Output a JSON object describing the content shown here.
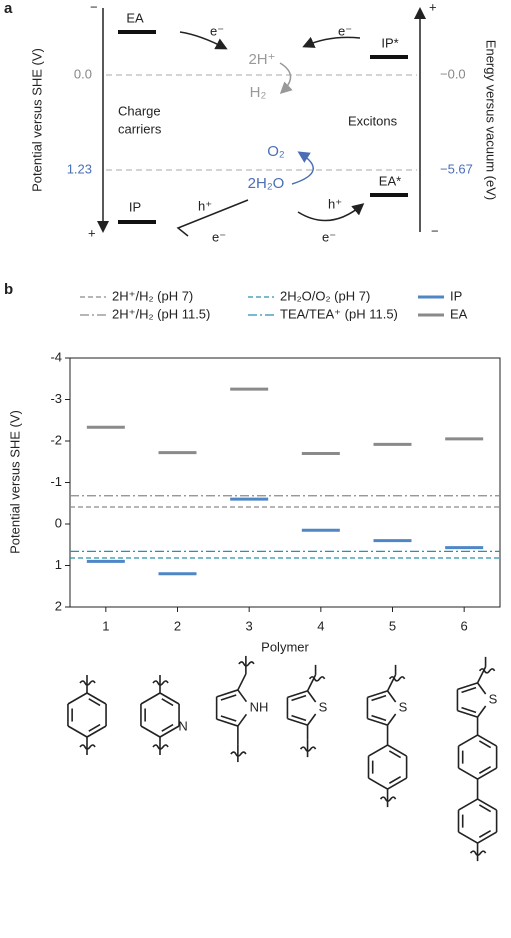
{
  "panel_a": {
    "label": "a",
    "left_axis_label": "Potential versus SHE (V)",
    "right_axis_label": "Energy versus vacuum (eV)",
    "left_top_sign": "−",
    "left_bottom_sign": "+",
    "right_top_sign": "+",
    "right_bottom_sign": "−",
    "left_levels": [
      "0.0",
      "1.23"
    ],
    "right_levels": [
      "−0.0",
      "−5.67"
    ],
    "ea": "EA",
    "ip": "IP",
    "ip_star": "IP*",
    "ea_star": "EA*",
    "charge_carriers": [
      "Charge",
      "carriers"
    ],
    "excitons": "Excitons",
    "proton": "2H⁺",
    "hydrogen": "H₂",
    "oxygen": "O₂",
    "water": "2H₂O",
    "electron_labels": [
      "e⁻",
      "e⁻",
      "e⁻",
      "e⁻"
    ],
    "hole_labels": [
      "h⁺",
      "h⁺"
    ]
  },
  "chart_data": {
    "type": "levels",
    "panel_label": "b",
    "ylabel": "Potential versus SHE (V)",
    "xlabel": "Polymer",
    "categories": [
      "1",
      "2",
      "3",
      "4",
      "5",
      "6"
    ],
    "ylim": [
      2,
      -4
    ],
    "yticks": [
      -4,
      -3,
      -2,
      -1,
      0,
      1,
      2
    ],
    "reference_lines": [
      {
        "name": "2H⁺/H₂ (pH 7)",
        "color": "#8a8a8a",
        "style": "dashed",
        "value": -0.41
      },
      {
        "name": "2H⁺/H₂ (pH 11.5)",
        "color": "#8a8a8a",
        "style": "dashdot",
        "value": -0.68
      },
      {
        "name": "2H₂O/O₂ (pH 7)",
        "color": "#2a8fb0",
        "style": "dashed",
        "value": 0.82
      },
      {
        "name": "TEA/TEA⁺ (pH 11.5)",
        "color": "#2a8fb0",
        "style": "dashdot",
        "value": 0.66
      }
    ],
    "series": [
      {
        "name": "IP",
        "color": "#4f86c6",
        "values": [
          0.9,
          1.2,
          -0.6,
          0.15,
          0.4,
          0.57
        ]
      },
      {
        "name": "EA",
        "color": "#8a8a8a",
        "values": [
          -2.33,
          -1.72,
          -3.25,
          -1.7,
          -1.92,
          -2.05
        ]
      }
    ]
  },
  "structures": {
    "atom_labels": [
      "N",
      "NH",
      "S",
      "S",
      "S"
    ]
  }
}
